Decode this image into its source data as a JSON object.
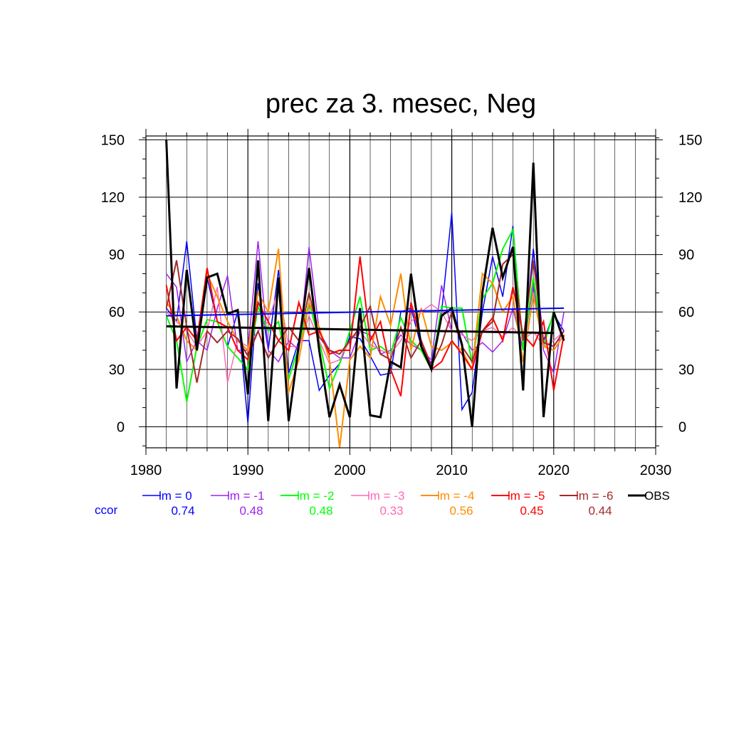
{
  "chart_data": {
    "type": "line",
    "title": "prec za 3. mesec, Neg",
    "xlabel": "",
    "ylabel": "",
    "xlim": [
      1980,
      2030
    ],
    "ylim": [
      -11,
      152
    ],
    "x_ticks": [
      1980,
      1990,
      2000,
      2010,
      2020,
      2030
    ],
    "y_ticks": [
      0,
      30,
      60,
      90,
      120,
      150
    ],
    "grid": true,
    "ccor_label": "ccor",
    "x": [
      1982,
      1983,
      1984,
      1985,
      1986,
      1987,
      1988,
      1989,
      1990,
      1991,
      1992,
      1993,
      1994,
      1995,
      1996,
      1997,
      1998,
      1999,
      2000,
      2001,
      2002,
      2003,
      2004,
      2005,
      2006,
      2007,
      2008,
      2009,
      2010,
      2011,
      2012,
      2013,
      2014,
      2015,
      2016,
      2017,
      2018,
      2019,
      2020,
      2021
    ],
    "series": [
      {
        "name": "lm = 0",
        "color": "#0000ff",
        "width": 1.5,
        "ccor": "0.74",
        "values": [
          62,
          55,
          97,
          45,
          78,
          55,
          42,
          60,
          2,
          75,
          40,
          82,
          28,
          45,
          45,
          19,
          27,
          33,
          47,
          46,
          37,
          27,
          28,
          60,
          62,
          42,
          33,
          60,
          112,
          9,
          18,
          60,
          89,
          68,
          105,
          40,
          93,
          45,
          59,
          50
        ]
      },
      {
        "name": "lm = -1",
        "color": "#a020f0",
        "width": 1.5,
        "ccor": "0.48",
        "values": [
          80,
          73,
          34,
          45,
          40,
          62,
          79,
          40,
          40,
          97,
          40,
          34,
          45,
          40,
          94,
          50,
          40,
          36,
          36,
          50,
          48,
          38,
          40,
          48,
          43,
          40,
          35,
          74,
          50,
          49,
          40,
          44,
          39,
          45,
          62,
          40,
          74,
          40,
          28,
          60
        ]
      },
      {
        "name": "lm = -2",
        "color": "#00ff00",
        "width": 2,
        "ccor": "0.48",
        "values": [
          58,
          45,
          13,
          42,
          56,
          55,
          42,
          36,
          30,
          63,
          50,
          55,
          25,
          42,
          65,
          45,
          20,
          33,
          50,
          68,
          40,
          42,
          38,
          57,
          45,
          40,
          30,
          63,
          62,
          62,
          33,
          67,
          75,
          93,
          103,
          40,
          78,
          42,
          60,
          45
        ]
      },
      {
        "name": "lm = -3",
        "color": "#ff69b4",
        "width": 1.5,
        "ccor": "0.33",
        "values": [
          60,
          55,
          50,
          42,
          50,
          73,
          23,
          45,
          42,
          50,
          55,
          72,
          42,
          42,
          58,
          45,
          33,
          35,
          45,
          50,
          43,
          40,
          38,
          45,
          55,
          60,
          64,
          60,
          50,
          48,
          45,
          50,
          52,
          47,
          52,
          45,
          50,
          42,
          45,
          50
        ]
      },
      {
        "name": "lm = -4",
        "color": "#ff8c00",
        "width": 2,
        "ccor": "0.56",
        "values": [
          65,
          58,
          45,
          40,
          80,
          68,
          55,
          45,
          40,
          70,
          60,
          93,
          18,
          35,
          65,
          52,
          35,
          -11,
          35,
          42,
          36,
          68,
          53,
          80,
          40,
          62,
          42,
          40,
          44,
          40,
          30,
          80,
          75,
          60,
          68,
          34,
          69,
          42,
          40,
          48
        ]
      },
      {
        "name": "lm = -5",
        "color": "#ff0000",
        "width": 2,
        "ccor": "0.45",
        "values": [
          74,
          45,
          52,
          45,
          83,
          55,
          52,
          40,
          35,
          65,
          55,
          45,
          40,
          65,
          48,
          50,
          38,
          40,
          40,
          89,
          45,
          55,
          30,
          16,
          65,
          45,
          30,
          34,
          45,
          38,
          30,
          50,
          57,
          45,
          73,
          48,
          42,
          55,
          19,
          48
        ]
      },
      {
        "name": "lm = -6",
        "color": "#a52a2a",
        "width": 2,
        "ccor": "0.44",
        "values": [
          62,
          87,
          52,
          23,
          50,
          44,
          50,
          46,
          37,
          50,
          36,
          45,
          52,
          45,
          70,
          47,
          40,
          38,
          45,
          52,
          63,
          38,
          35,
          52,
          36,
          45,
          32,
          43,
          60,
          42,
          34,
          50,
          55,
          85,
          90,
          45,
          87,
          44,
          42,
          50
        ]
      },
      {
        "name": "OBS",
        "color": "#000000",
        "width": 3,
        "ccor": "",
        "values": [
          150,
          20,
          82,
          40,
          78,
          80,
          59,
          61,
          17,
          87,
          3,
          78,
          3,
          43,
          83,
          40,
          5,
          22,
          5,
          62,
          6,
          5,
          34,
          31,
          80,
          42,
          30,
          58,
          62,
          43,
          0,
          70,
          104,
          78,
          94,
          19,
          138,
          5,
          60,
          45
        ]
      }
    ],
    "trend_lines": [
      {
        "name": "lm = 0 trend",
        "color": "#0000ff",
        "width": 2,
        "x": [
          1982,
          2021
        ],
        "y": [
          58,
          62
        ]
      },
      {
        "name": "OBS trend",
        "color": "#000000",
        "width": 3,
        "x": [
          1982,
          2020
        ],
        "y": [
          52.5,
          49
        ]
      }
    ]
  }
}
